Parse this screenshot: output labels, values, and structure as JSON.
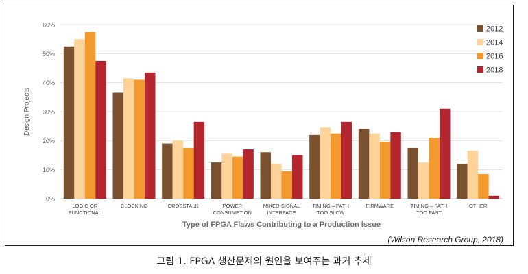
{
  "chart_data": {
    "type": "bar",
    "title": "",
    "xlabel": "Type of FPGA Flaws Contributing to a Production Issue",
    "ylabel": "Design Projects",
    "ylim": [
      0,
      60
    ],
    "yticks": [
      0,
      10,
      20,
      30,
      40,
      50,
      60
    ],
    "ytick_format": "{v}%",
    "grid": true,
    "legend_position": "top-right",
    "categories": [
      [
        "LOGIC OR",
        "FUNCTIONAL"
      ],
      [
        "CLOCKING"
      ],
      [
        "CROSSTALK"
      ],
      [
        "POWER",
        "CONSUMPTION"
      ],
      [
        "MIXED-SIGNAL",
        "INTERFACE"
      ],
      [
        "TIMING – PATH",
        "TOO SLOW"
      ],
      [
        "FIRMWARE"
      ],
      [
        "TIMING – PATH",
        "TOO FAST"
      ],
      [
        "OTHER"
      ]
    ],
    "series": [
      {
        "name": "2012",
        "color": "#7a5230",
        "values": [
          52.5,
          36.5,
          19,
          12.5,
          16,
          22,
          24,
          17.5,
          12
        ]
      },
      {
        "name": "2014",
        "color": "#fdd39a",
        "values": [
          55,
          41.5,
          20,
          15.5,
          12,
          24.5,
          22.5,
          12.5,
          16.5
        ]
      },
      {
        "name": "2016",
        "color": "#f29a2e",
        "values": [
          57.5,
          41,
          17.5,
          14.5,
          9.5,
          22.5,
          19.5,
          21,
          8.5
        ]
      },
      {
        "name": "2018",
        "color": "#b3262e",
        "values": [
          47.5,
          43.5,
          26.5,
          17,
          15,
          26.5,
          23,
          31,
          1
        ]
      }
    ]
  },
  "source_note": "(Wilson Research Group, 2018)",
  "caption": "그림 1. FPGA 생산문제의 원인을 보여주는 과거 추세"
}
